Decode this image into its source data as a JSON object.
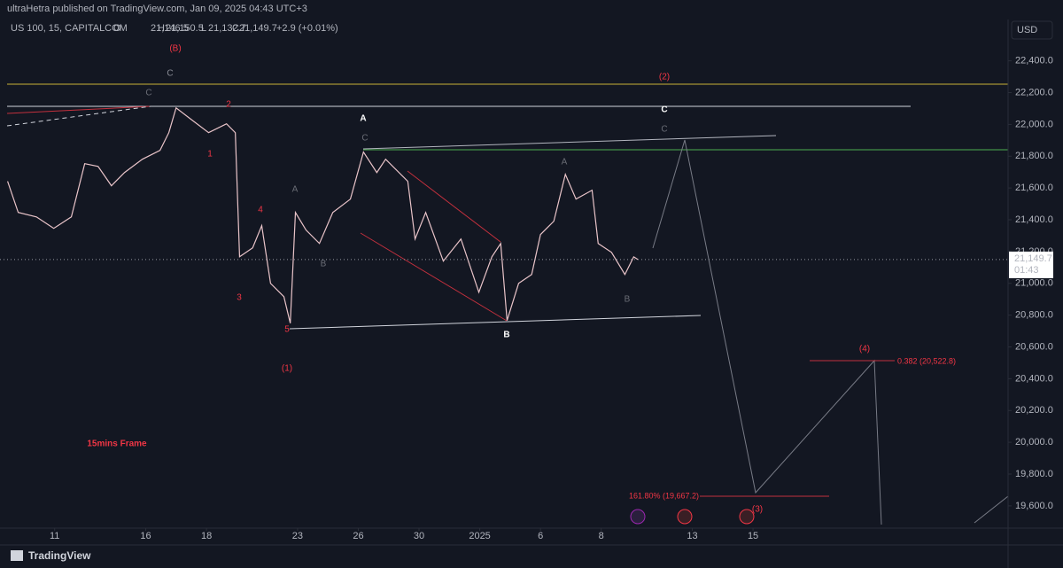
{
  "header": {
    "published": "ultraHetra published on TradingView.com, Jan 09, 2025 04:43 UTC+3",
    "symbol": "US 100, 15, CAPITALCOM",
    "ohlc": [
      {
        "key": "O",
        "value": "21,146.5"
      },
      {
        "key": "H",
        "value": "21,150.5"
      },
      {
        "key": "L",
        "value": "21,132.7"
      },
      {
        "key": "C",
        "value": "21,149.7"
      }
    ],
    "change": "+2.9 (+0.01%)",
    "currency": "USD"
  },
  "footer": {
    "brand": "TradingView"
  },
  "chart_data": {
    "type": "line",
    "color": "#e9c4c9",
    "series": [
      {
        "name": "US 100",
        "color": "#e9c4c9",
        "x": [
          -1.55,
          -1.2,
          -0.6,
          -0.03,
          0.55,
          0.99,
          1.43,
          1.87,
          2.3,
          2.89,
          3.47,
          3.76,
          4.0,
          4.49,
          5.07,
          5.66,
          5.95,
          6.09,
          6.52,
          6.82,
          7.11,
          7.55,
          7.76,
          7.93,
          8.28,
          8.72,
          9.16,
          9.74,
          10.17,
          10.61,
          10.9,
          11.63,
          11.87,
          12.22,
          12.8,
          13.38,
          13.97,
          14.4,
          14.69,
          14.9,
          15.28,
          15.71,
          16.0,
          16.44,
          16.82,
          17.17,
          17.7,
          17.9,
          18.34,
          18.78,
          19.07,
          19.21
        ],
        "values": [
          21642,
          21446,
          21418,
          21346,
          21418,
          21753,
          21736,
          21614,
          21697,
          21781,
          21837,
          21948,
          22104,
          22032,
          21948,
          22004,
          21948,
          21167,
          21223,
          21363,
          21000,
          20916,
          20749,
          21446,
          21335,
          21251,
          21446,
          21530,
          21826,
          21697,
          21781,
          21642,
          21279,
          21446,
          21140,
          21279,
          20944,
          21167,
          21251,
          20766,
          21000,
          21056,
          21307,
          21391,
          21686,
          21530,
          21586,
          21251,
          21195,
          21056,
          21167,
          21150
        ]
      }
    ],
    "xlim": [
      -1.8,
      31.4
    ],
    "xticks": [
      {
        "value": 0,
        "label": "11"
      },
      {
        "value": 3,
        "label": "16"
      },
      {
        "value": 5,
        "label": "18"
      },
      {
        "value": 8,
        "label": "23"
      },
      {
        "value": 10,
        "label": "26"
      },
      {
        "value": 12,
        "label": "30"
      },
      {
        "value": 14,
        "label": "2025"
      },
      {
        "value": 16,
        "label": "6"
      },
      {
        "value": 18,
        "label": "8"
      },
      {
        "value": 21,
        "label": "13"
      },
      {
        "value": 23,
        "label": "15"
      }
    ],
    "ylim": [
      19460,
      22660
    ],
    "yticks": [
      {
        "value": 19600,
        "label": "19,600.0"
      },
      {
        "value": 19800,
        "label": "19,800.0"
      },
      {
        "value": 20000,
        "label": "20,000.0"
      },
      {
        "value": 20200,
        "label": "20,200.0"
      },
      {
        "value": 20400,
        "label": "20,400.0"
      },
      {
        "value": 20600,
        "label": "20,600.0"
      },
      {
        "value": 20800,
        "label": "20,800.0"
      },
      {
        "value": 21000,
        "label": "21,000.0"
      },
      {
        "value": 21200,
        "label": "21,200.0"
      },
      {
        "value": 21400,
        "label": "21,400.0"
      },
      {
        "value": 21600,
        "label": "21,600.0"
      },
      {
        "value": 21800,
        "label": "21,800.0"
      },
      {
        "value": 22000,
        "label": "22,000.0"
      },
      {
        "value": 22200,
        "label": "22,200.0"
      },
      {
        "value": 22400,
        "label": "22,400.0"
      }
    ],
    "grid": false,
    "last_price": {
      "value": 21149.7,
      "label": "21,149.7",
      "countdown": "01:43"
    },
    "annotations": [
      {
        "text": "(B)",
        "color": "#f23645"
      },
      {
        "text": "C",
        "color": "#8a8d96"
      },
      {
        "text": "C",
        "color": "#6a6d76"
      },
      {
        "text": "2",
        "color": "#f23645"
      },
      {
        "text": "1",
        "color": "#f23645"
      },
      {
        "text": "4",
        "color": "#f23645"
      },
      {
        "text": "3",
        "color": "#f23645"
      },
      {
        "text": "5",
        "color": "#f23645"
      },
      {
        "text": "(1)",
        "color": "#f23645"
      },
      {
        "text": "A",
        "color": "#6a6d76"
      },
      {
        "text": "B",
        "color": "#6a6d76"
      },
      {
        "text": "A",
        "color": "#ffffff"
      },
      {
        "text": "C",
        "color": "#6a6d76"
      },
      {
        "text": "B",
        "color": "#ffffff"
      },
      {
        "text": "A",
        "color": "#6a6d76"
      },
      {
        "text": "B",
        "color": "#6a6d76"
      },
      {
        "text": "(2)",
        "color": "#f23645"
      },
      {
        "text": "C",
        "color": "#ffffff"
      },
      {
        "text": "C",
        "color": "#6a6d76"
      },
      {
        "text": "(4)",
        "color": "#f23645"
      },
      {
        "text": "(3)",
        "color": "#f23645"
      },
      {
        "text": "15mins Frame",
        "color": "#f23645"
      },
      {
        "text": "0.382 (20,522.8)",
        "color": "#f23645"
      },
      {
        "text": "161.80% (19,667.2)",
        "color": "#f23645"
      }
    ]
  }
}
